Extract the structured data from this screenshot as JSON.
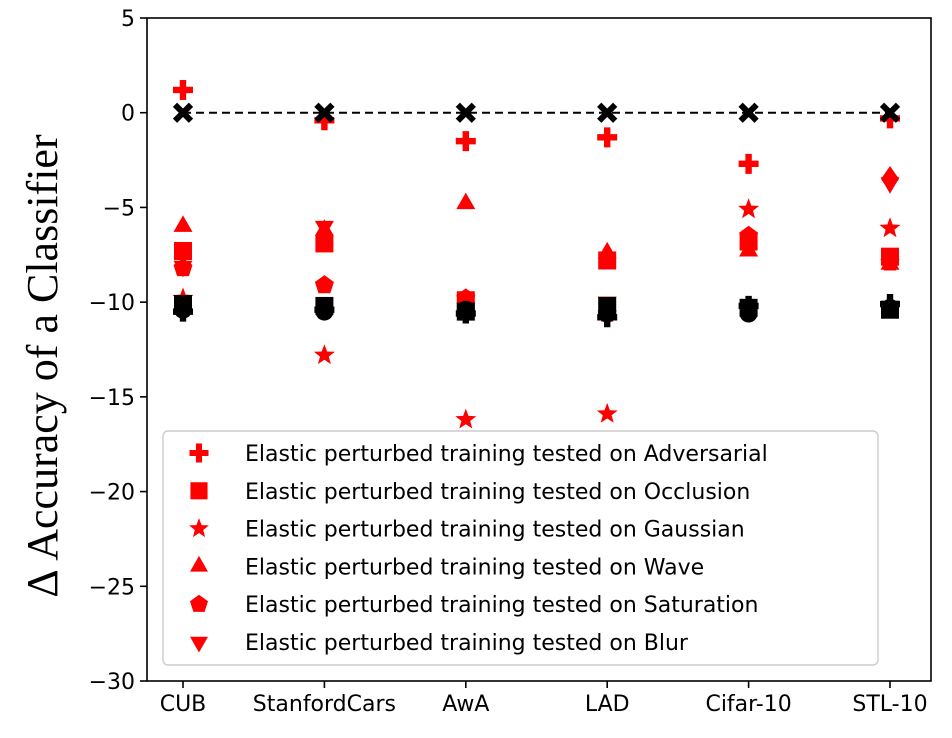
{
  "chart_data": {
    "type": "scatter",
    "title": "",
    "xlabel": "",
    "ylabel": "Δ Accuracy of a Classifier",
    "ylim": [
      -30,
      5
    ],
    "yticks": [
      "5",
      "0",
      "−5",
      "−10",
      "−15",
      "−20",
      "−25",
      "−30"
    ],
    "ytick_values": [
      5,
      0,
      -5,
      -10,
      -15,
      -20,
      -25,
      -30
    ],
    "categories": [
      "CUB",
      "StanfordCars",
      "AwA",
      "LAD",
      "Cifar-10",
      "STL-10"
    ],
    "grid": false,
    "legend_position": "lower-center",
    "reference_line": {
      "y": 0,
      "style": "dashed",
      "color": "#000000"
    },
    "series": [
      {
        "name": "Elastic perturbed training tested on Adversarial",
        "marker": "plus",
        "color": "#ff0000",
        "values": [
          1.2,
          -0.4,
          -1.5,
          -1.3,
          -2.7,
          -0.3
        ]
      },
      {
        "name": "Elastic perturbed training tested on Occlusion",
        "marker": "square",
        "color": "#ff0000",
        "values": [
          -7.3,
          -6.9,
          -9.9,
          -7.8,
          -6.8,
          -7.6
        ]
      },
      {
        "name": "Elastic perturbed training tested on Gaussian",
        "marker": "star",
        "color": "#ff0000",
        "values": [
          -9.8,
          -12.8,
          -16.2,
          -15.9,
          -5.1,
          -6.1
        ]
      },
      {
        "name": "Elastic perturbed training tested on Wave",
        "marker": "triangle-up",
        "color": "#ff0000",
        "values": [
          -6.0,
          -6.2,
          -4.8,
          -7.4,
          -7.3,
          -8.0
        ]
      },
      {
        "name": "Elastic perturbed training tested on Saturation",
        "marker": "pentagon",
        "color": "#ff0000",
        "values": [
          -8.2,
          -9.1,
          -9.8,
          -10.6,
          -6.5,
          -7.9
        ]
      },
      {
        "name": "Elastic perturbed training tested on Blur",
        "marker": "triangle-down",
        "color": "#ff0000",
        "values": [
          -8.1,
          -6.0,
          -10.3,
          -10.0,
          -10.5,
          -3.7
        ]
      },
      {
        "name": "",
        "marker": "diamond",
        "color": "#ff0000",
        "values": [
          null,
          null,
          null,
          null,
          null,
          -3.5
        ]
      },
      {
        "name": "",
        "marker": "x",
        "color": "#000000",
        "values": [
          0,
          0,
          0,
          0,
          0,
          0
        ]
      },
      {
        "name": "",
        "marker": "square",
        "color": "#000000",
        "values": [
          -10.1,
          -10.2,
          -10.5,
          -10.2,
          -10.3,
          -10.4
        ]
      },
      {
        "name": "",
        "marker": "circle",
        "color": "#000000",
        "values": [
          -10.4,
          -10.5,
          -10.4,
          -10.6,
          -10.6,
          -10.3
        ]
      },
      {
        "name": "",
        "marker": "plus",
        "color": "#000000",
        "values": [
          -10.5,
          -10.4,
          -10.6,
          -10.8,
          -10.2,
          -10.1
        ]
      }
    ]
  }
}
